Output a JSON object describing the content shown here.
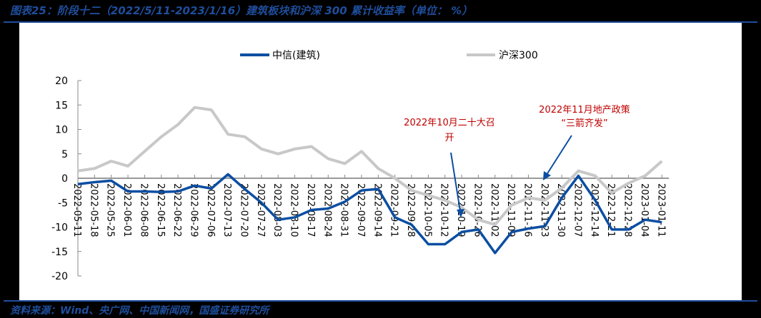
{
  "header": {
    "title": "图表25：阶段十二（2022/5/11-2023/1/16）建筑板块和沪深 300 累计收益率（单位：  %）"
  },
  "footer": {
    "source": "资料来源：Wind、央广网、中国新闻网，国盛证券研究所"
  },
  "colors": {
    "construction": "#0c4ea2",
    "hs300": "#c8c8c8",
    "accent": "#1f4e9c",
    "annotation": "#c00000"
  },
  "legend": {
    "series1": "中信(建筑)",
    "series2": "沪深300"
  },
  "annotations": {
    "a1_line1": "2022年10月二十大召",
    "a1_line2": "开",
    "a2_line1": "2022年11月地产政策",
    "a2_line2": "“三箭齐发”"
  },
  "chart_data": {
    "type": "line",
    "title": "图表25：阶段十二（2022/5/11-2023/1/16）建筑板块和沪深 300 累计收益率（单位：  %）",
    "xlabel": "",
    "ylabel": "%",
    "ylim": [
      -20,
      20
    ],
    "yticks": [
      20,
      15,
      10,
      5,
      0,
      -5,
      -10,
      -15,
      -20
    ],
    "legend_position": "top",
    "grid": false,
    "categories": [
      "2022-05-11",
      "2022-05-18",
      "2022-05-25",
      "2022-06-01",
      "2022-06-08",
      "2022-06-15",
      "2022-06-22",
      "2022-06-29",
      "2022-07-06",
      "2022-07-13",
      "2022-07-20",
      "2022-07-27",
      "2022-08-03",
      "2022-08-10",
      "2022-08-17",
      "2022-08-24",
      "2022-08-31",
      "2022-09-07",
      "2022-09-14",
      "2022-09-21",
      "2022-09-28",
      "2022-10-05",
      "2022-10-12",
      "2022-10-19",
      "2022-10-26",
      "2022-11-02",
      "2022-11-09",
      "2022-11-16",
      "2022-11-23",
      "2022-11-30",
      "2022-12-07",
      "2022-12-14",
      "2022-12-21",
      "2022-12-28",
      "2023-01-04",
      "2023-01-11"
    ],
    "series": [
      {
        "name": "中信(建筑)",
        "values": [
          -1.2,
          -0.8,
          -0.5,
          -2.7,
          -2.7,
          -2.8,
          -2.7,
          -1.5,
          -2.1,
          0.8,
          -2.2,
          -5.0,
          -8.5,
          -8.0,
          -6.5,
          -6.2,
          -4.8,
          -2.5,
          -2.2,
          -8.0,
          -9.5,
          -13.5,
          -13.5,
          -11.0,
          -10.5,
          -15.3,
          -11.0,
          -10.3,
          -9.8,
          -4.0,
          0.5,
          -4.5,
          -10.5,
          -10.5,
          -8.5,
          -9.0
        ]
      },
      {
        "name": "沪深300",
        "values": [
          1.5,
          2.0,
          3.5,
          2.5,
          5.5,
          8.5,
          11.0,
          14.5,
          14.0,
          9.0,
          8.5,
          6.0,
          5.0,
          6.0,
          6.5,
          4.0,
          3.0,
          5.5,
          2.0,
          0.0,
          -2.5,
          -3.5,
          -4.5,
          -6.0,
          -8.5,
          -9.5,
          -5.5,
          -4.0,
          -4.5,
          -2.0,
          1.5,
          0.5,
          -3.0,
          -1.0,
          0.5,
          3.5
        ]
      }
    ],
    "annotations": [
      {
        "text": "2022年10月二十大召开",
        "x": "2022-10-19"
      },
      {
        "text": "2022年11月地产政策“三箭齐发”",
        "x": "2022-11-23"
      }
    ]
  }
}
